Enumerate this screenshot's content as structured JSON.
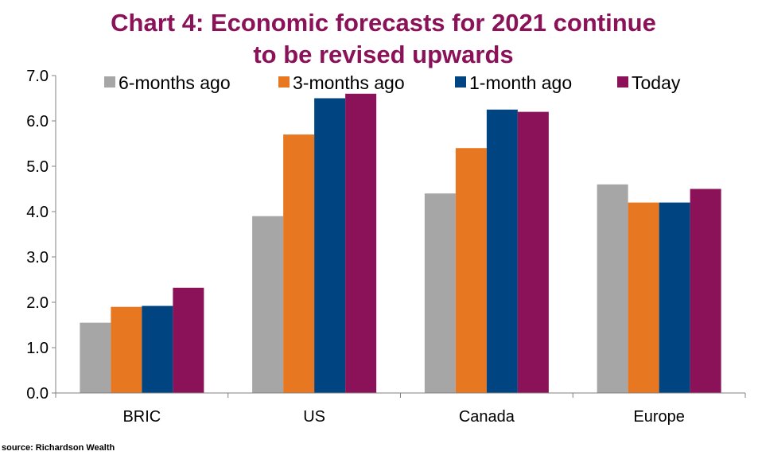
{
  "chart_data": {
    "type": "bar",
    "title": "Chart 4: Economic forecasts for 2021 continue to be revised upwards",
    "title_lines": [
      "Chart 4: Economic forecasts for 2021 continue",
      "to be revised upwards"
    ],
    "categories": [
      "BRIC",
      "US",
      "Canada",
      "Europe"
    ],
    "series": [
      {
        "name": "6-months ago",
        "color": "#a6a6a6",
        "values": [
          1.55,
          3.9,
          4.4,
          4.6
        ]
      },
      {
        "name": "3-months ago",
        "color": "#e87722",
        "values": [
          1.9,
          5.7,
          5.4,
          4.2
        ]
      },
      {
        "name": "1-month ago",
        "color": "#004481",
        "values": [
          1.92,
          6.5,
          6.25,
          4.2
        ]
      },
      {
        "name": "Today",
        "color": "#8b1158",
        "values": [
          2.32,
          6.6,
          6.2,
          4.5
        ]
      }
    ],
    "ylim": [
      0,
      7
    ],
    "yticks": [
      "0.0",
      "1.0",
      "2.0",
      "3.0",
      "4.0",
      "5.0",
      "6.0",
      "7.0"
    ],
    "xlabel": "",
    "ylabel": "",
    "legend": "top",
    "grid": false,
    "title_color": "#8b1158"
  },
  "source": "source: Richardson Wealth"
}
